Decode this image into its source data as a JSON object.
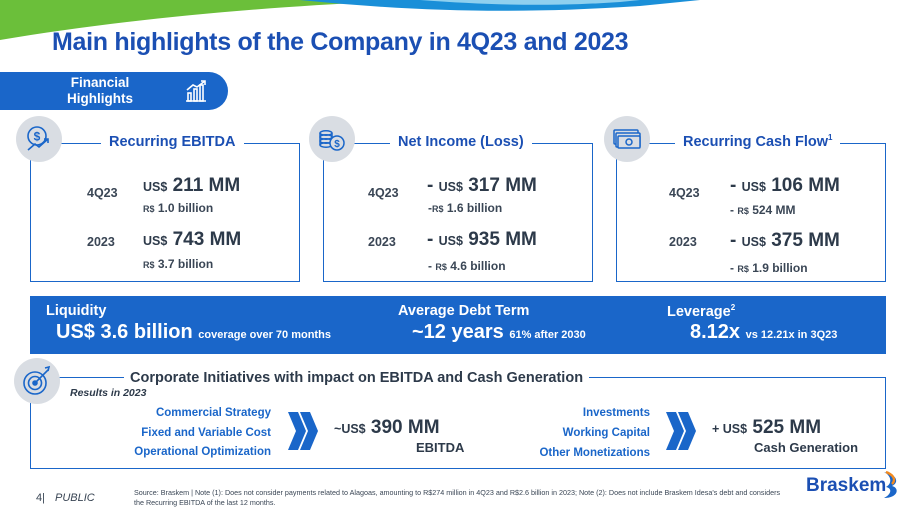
{
  "title": "Main highlights of the Company in 4Q23 and 2023",
  "financial_tab": {
    "label": "Financial Highlights"
  },
  "cards": [
    {
      "title": "Recurring EBITDA",
      "footnote": "",
      "icon": "dollar-growth-icon",
      "rows": [
        {
          "label": "4Q23",
          "prefix": "",
          "currency": "US$",
          "value": "211 MM",
          "sub_prefix": "",
          "sub_currency": "R$",
          "sub_value": "1.0 billion"
        },
        {
          "label": "2023",
          "prefix": "",
          "currency": "US$",
          "value": "743 MM",
          "sub_prefix": "",
          "sub_currency": "R$",
          "sub_value": "3.7 billion"
        }
      ]
    },
    {
      "title": "Net Income (Loss)",
      "footnote": "",
      "icon": "coin-stack-icon",
      "rows": [
        {
          "label": "4Q23",
          "prefix": "- ",
          "currency": "US$",
          "value": "317 MM",
          "sub_prefix": "-",
          "sub_currency": "R$",
          "sub_value": "1.6 billion"
        },
        {
          "label": "2023",
          "prefix": "- ",
          "currency": "US$",
          "value": "935 MM",
          "sub_prefix": "- ",
          "sub_currency": "R$",
          "sub_value": "4.6 billion"
        }
      ]
    },
    {
      "title": "Recurring Cash Flow",
      "footnote": "1",
      "icon": "banknotes-icon",
      "rows": [
        {
          "label": "4Q23",
          "prefix": "- ",
          "currency": "US$",
          "value": "106 MM",
          "sub_prefix": "- ",
          "sub_currency": "R$",
          "sub_value": "524 MM"
        },
        {
          "label": "2023",
          "prefix": "- ",
          "currency": "US$",
          "value": "375 MM",
          "sub_prefix": "- ",
          "sub_currency": "R$",
          "sub_value": "1.9 billion"
        }
      ]
    }
  ],
  "band": {
    "liquidity": {
      "label": "Liquidity",
      "value": "US$ 3.6 billion",
      "note": "coverage over 70 months"
    },
    "debt_term": {
      "label": "Average Debt Term",
      "value": "~12 years",
      "note": "61% after 2030"
    },
    "leverage": {
      "label": "Leverage",
      "footnote": "2",
      "value": "8.12x",
      "note": "vs 12.21x in 3Q23"
    }
  },
  "initiatives": {
    "title": "Corporate Initiatives with impact on EBITDA and Cash Generation",
    "results_label": "Results in 2023",
    "left_items": [
      "Commercial Strategy",
      "Fixed and Variable Cost",
      "Operational Optimization"
    ],
    "left_value_prefix": "~",
    "left_value_currency": "US$",
    "left_value": "390 MM",
    "left_value_label": "EBITDA",
    "right_items": [
      "Investments",
      "Working Capital",
      "Other Monetizations"
    ],
    "right_value_prefix": "+ ",
    "right_value_currency": "US$",
    "right_value": "525 MM",
    "right_value_label": "Cash Generation"
  },
  "footer": {
    "page_number": "4|",
    "classification": "PUBLIC",
    "source": "Source: Braskem | Note (1): Does not consider payments related to Alagoas, amounting to R$274 million in 4Q23 and R$2.6 billion in 2023; Note (2): Does not include Braskem Idesa's debt and considers the Recurring EBITDA of the last 12 months.",
    "logo": "Braskem"
  },
  "colors": {
    "brand_blue": "#1a66c9",
    "title_blue": "#1b4fb3",
    "icon_grey": "#d9dde3"
  }
}
